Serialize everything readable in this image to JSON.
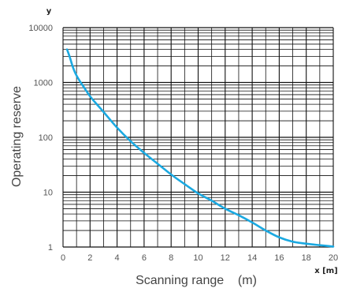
{
  "chart_data": {
    "type": "line",
    "y_scale": "log",
    "ylabel": "Operating reserve",
    "xlabel": "Scanning range    (m)",
    "y_axis_letter": "y",
    "x_axis_letter": "x [m]",
    "xlim": [
      0,
      20
    ],
    "ylim": [
      1,
      10000
    ],
    "x_ticks": [
      "0",
      "2",
      "4",
      "6",
      "8",
      "10",
      "12",
      "14",
      "16",
      "18",
      "20"
    ],
    "y_ticks": [
      "1",
      "10",
      "100",
      "1000",
      "10000"
    ],
    "grid": true,
    "line_color": "#1ba9e1",
    "series": [
      {
        "x": [
          0.3,
          0.5,
          0.7,
          0.9,
          1.2,
          1.5,
          2.0,
          2.5,
          3.0,
          4.0,
          5.0,
          6.0,
          7.0,
          8.0,
          9.0,
          10.0,
          11.0,
          12.0,
          13.0,
          14.0,
          15.0,
          16.0,
          17.0,
          18.0,
          19.0,
          20.0
        ],
        "y": [
          4000,
          2900,
          2000,
          1500,
          1100,
          850,
          560,
          400,
          290,
          150,
          85,
          52,
          33,
          21,
          14,
          9.5,
          7,
          5,
          3.8,
          2.8,
          2.0,
          1.5,
          1.25,
          1.15,
          1.08,
          1.02
        ]
      }
    ]
  }
}
